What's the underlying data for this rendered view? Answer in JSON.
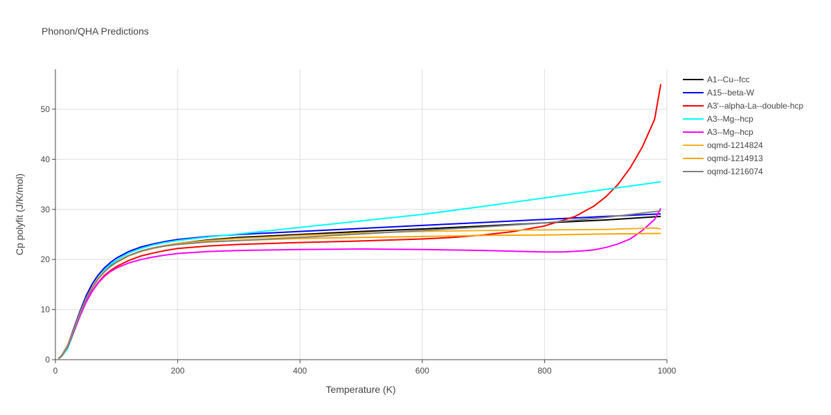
{
  "chart_data": {
    "type": "line",
    "title": "Phonon/QHA Predictions",
    "xlabel": "Temperature (K)",
    "ylabel": "Cp polyfit (J/K/mol)",
    "xlim": [
      0,
      1000
    ],
    "ylim": [
      0,
      58
    ],
    "xticks": [
      0,
      200,
      400,
      600,
      800,
      1000
    ],
    "yticks": [
      0,
      10,
      20,
      30,
      40,
      50
    ],
    "grid": true,
    "legend_position": "right",
    "series": [
      {
        "name": "A1--Cu--fcc",
        "color": "#000000",
        "x": [
          5,
          10,
          20,
          30,
          40,
          50,
          60,
          70,
          80,
          90,
          100,
          120,
          140,
          160,
          180,
          200,
          250,
          300,
          400,
          500,
          600,
          700,
          800,
          900,
          990
        ],
        "y": [
          0.2,
          0.8,
          2.8,
          6.0,
          9.3,
          12.3,
          14.5,
          16.3,
          17.6,
          18.7,
          19.5,
          20.8,
          21.7,
          22.3,
          22.8,
          23.2,
          23.9,
          24.4,
          25.0,
          25.6,
          26.1,
          26.7,
          27.3,
          27.9,
          28.6
        ]
      },
      {
        "name": "A15--beta-W",
        "color": "#0000ff",
        "x": [
          5,
          10,
          20,
          30,
          40,
          50,
          60,
          70,
          80,
          90,
          100,
          120,
          140,
          160,
          180,
          200,
          250,
          300,
          400,
          500,
          600,
          700,
          800,
          900,
          990
        ],
        "y": [
          0.2,
          0.8,
          2.8,
          6.2,
          9.6,
          12.7,
          15.1,
          16.9,
          18.3,
          19.4,
          20.3,
          21.6,
          22.5,
          23.1,
          23.6,
          24.0,
          24.6,
          25.0,
          25.6,
          26.2,
          26.8,
          27.4,
          28.0,
          28.6,
          29.1
        ]
      },
      {
        "name": "A3'--alpha-La--double-hcp",
        "color": "#ff0000",
        "x": [
          5,
          10,
          20,
          30,
          40,
          50,
          60,
          70,
          80,
          90,
          100,
          120,
          140,
          160,
          180,
          200,
          250,
          300,
          400,
          500,
          600,
          650,
          700,
          750,
          800,
          850,
          880,
          900,
          920,
          940,
          960,
          980,
          990
        ],
        "y": [
          0.2,
          0.8,
          2.6,
          5.6,
          8.8,
          11.5,
          13.7,
          15.4,
          16.8,
          17.8,
          18.6,
          19.8,
          20.7,
          21.3,
          21.8,
          22.2,
          22.7,
          23.0,
          23.4,
          23.7,
          24.1,
          24.4,
          24.9,
          25.6,
          26.7,
          28.6,
          30.6,
          32.5,
          35.0,
          38.3,
          42.5,
          48.0,
          55.0
        ]
      },
      {
        "name": "A3--Mg--hcp",
        "color": "#00ffff",
        "x": [
          5,
          10,
          20,
          30,
          40,
          50,
          60,
          70,
          80,
          90,
          100,
          120,
          140,
          160,
          180,
          200,
          250,
          300,
          400,
          500,
          600,
          700,
          800,
          900,
          990
        ],
        "y": [
          0.2,
          0.6,
          2.2,
          5.4,
          8.8,
          11.9,
          14.4,
          16.4,
          17.9,
          19.0,
          19.9,
          21.3,
          22.2,
          22.9,
          23.4,
          23.8,
          24.5,
          25.1,
          26.4,
          27.7,
          29.0,
          30.6,
          32.3,
          34.0,
          35.5
        ]
      },
      {
        "name": "A3--Mg--hcp",
        "color": "#ff00ff",
        "x": [
          5,
          10,
          20,
          30,
          40,
          50,
          60,
          70,
          80,
          90,
          100,
          120,
          140,
          160,
          180,
          200,
          250,
          300,
          400,
          500,
          600,
          700,
          800,
          830,
          860,
          880,
          900,
          920,
          940,
          960,
          980,
          990
        ],
        "y": [
          0.2,
          0.7,
          2.5,
          5.5,
          8.6,
          11.4,
          13.6,
          15.3,
          16.6,
          17.6,
          18.3,
          19.3,
          20.0,
          20.5,
          20.9,
          21.2,
          21.6,
          21.8,
          22.0,
          22.1,
          22.0,
          21.8,
          21.5,
          21.5,
          21.7,
          21.9,
          22.4,
          23.1,
          24.1,
          25.8,
          28.0,
          30.2
        ]
      },
      {
        "name": "oqmd-1214824",
        "color": "#f0b020",
        "x": [
          5,
          10,
          20,
          30,
          40,
          50,
          60,
          70,
          80,
          90,
          100,
          120,
          140,
          160,
          180,
          200,
          250,
          300,
          400,
          500,
          600,
          700,
          800,
          900,
          980,
          990
        ],
        "y": [
          0.2,
          0.8,
          2.7,
          5.9,
          9.2,
          12.2,
          14.5,
          16.3,
          17.6,
          18.6,
          19.5,
          20.8,
          21.7,
          22.3,
          22.8,
          23.2,
          23.8,
          24.2,
          24.8,
          25.3,
          25.6,
          25.8,
          25.9,
          26.0,
          26.3,
          26.1
        ]
      },
      {
        "name": "oqmd-1214913",
        "color": "#ffa500",
        "x": [
          5,
          10,
          20,
          30,
          40,
          50,
          60,
          70,
          80,
          90,
          100,
          120,
          140,
          160,
          180,
          200,
          250,
          300,
          400,
          500,
          600,
          700,
          800,
          900,
          990
        ],
        "y": [
          0.2,
          0.8,
          2.7,
          5.9,
          9.2,
          12.1,
          14.4,
          16.2,
          17.6,
          18.6,
          19.4,
          20.7,
          21.6,
          22.2,
          22.7,
          23.0,
          23.5,
          23.8,
          24.2,
          24.4,
          24.6,
          24.8,
          24.9,
          25.1,
          25.2
        ]
      },
      {
        "name": "oqmd-1216074",
        "color": "#808080",
        "x": [
          5,
          10,
          20,
          30,
          40,
          50,
          60,
          70,
          80,
          90,
          100,
          120,
          140,
          160,
          180,
          200,
          250,
          300,
          400,
          500,
          600,
          700,
          800,
          900,
          990
        ],
        "y": [
          0.2,
          0.7,
          2.5,
          5.7,
          9.0,
          12.0,
          14.3,
          16.1,
          17.5,
          18.6,
          19.5,
          20.8,
          21.7,
          22.3,
          22.7,
          23.0,
          23.5,
          23.8,
          24.4,
          25.1,
          25.8,
          26.5,
          27.3,
          28.4,
          29.7
        ]
      }
    ]
  }
}
